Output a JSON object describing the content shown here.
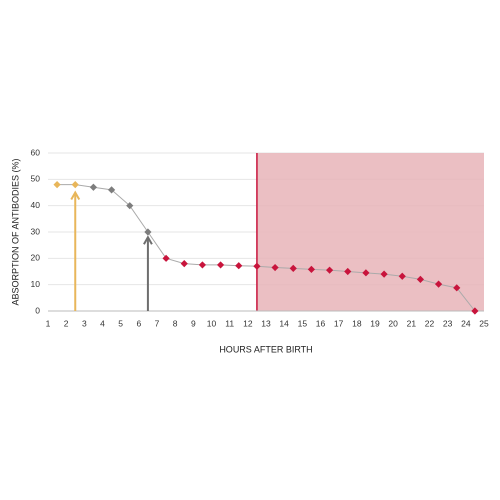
{
  "chart_data": {
    "type": "line",
    "x_label": "HOURS AFTER BIRTH",
    "y_label": "ABSORPTION OF ANTIBODIES (%)",
    "x": [
      1.5,
      2.5,
      3.5,
      4.5,
      5.5,
      6.5,
      7.5,
      8.5,
      9.5,
      10.5,
      11.5,
      12.5,
      13.5,
      14.5,
      15.5,
      16.5,
      17.5,
      18.5,
      19.5,
      20.5,
      21.5,
      22.5,
      23.5,
      24.5
    ],
    "values": [
      48,
      48,
      47,
      46,
      40,
      30,
      20,
      18,
      17.5,
      17.5,
      17.2,
      17,
      16.5,
      16.2,
      15.8,
      15.5,
      15,
      14.5,
      14,
      13.2,
      12,
      10.2,
      8.8,
      0
    ],
    "line_color": "#aaaaaa",
    "point_colors": [
      "#e8b65a",
      "#e8b65a",
      "#7d7d7d",
      "#7d7d7d",
      "#7d7d7d",
      "#7d7d7d",
      "#c8143c",
      "#c8143c",
      "#c8143c",
      "#c8143c",
      "#c8143c",
      "#c8143c",
      "#c8143c",
      "#c8143c",
      "#c8143c",
      "#c8143c",
      "#c8143c",
      "#c8143c",
      "#c8143c",
      "#c8143c",
      "#c8143c",
      "#c8143c",
      "#c8143c",
      "#c8143c"
    ],
    "arrows": [
      {
        "x": 2.5,
        "y": 45,
        "color": "#e8b65a"
      },
      {
        "x": 6.5,
        "y": 28,
        "color": "#6e6e6e"
      }
    ],
    "shaded_region": {
      "x": [
        12.5,
        25
      ],
      "color": "#e8b4b8",
      "edge_color": "#c8143c"
    },
    "xlim": [
      1,
      25
    ],
    "xticks": [
      1,
      2,
      3,
      4,
      5,
      6,
      7,
      8,
      9,
      10,
      11,
      12,
      13,
      14,
      15,
      16,
      17,
      18,
      19,
      20,
      21,
      22,
      23,
      24,
      25
    ],
    "ylim": [
      0,
      60
    ],
    "yticks": [
      0,
      10,
      20,
      30,
      40,
      50,
      60
    ],
    "grid": true
  }
}
